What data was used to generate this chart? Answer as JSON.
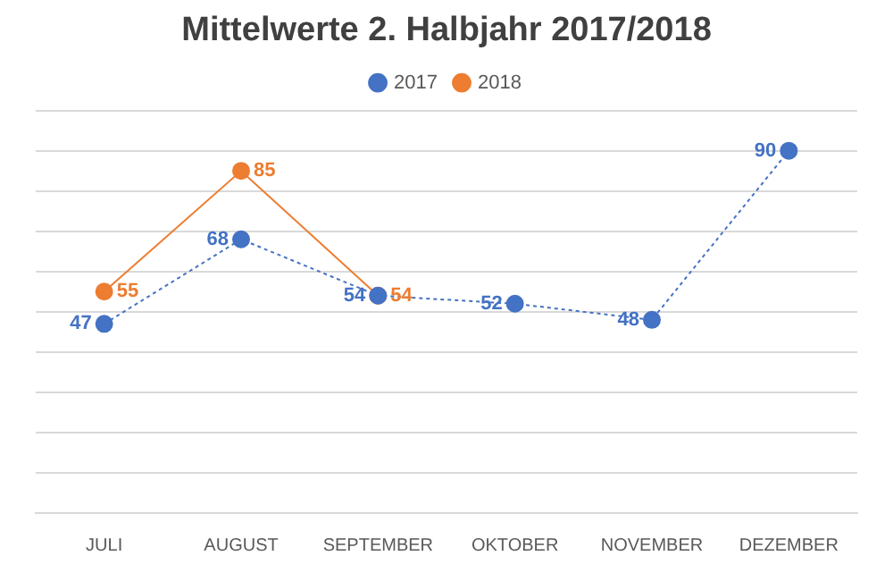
{
  "chart_data": {
    "type": "line",
    "title": "Mittelwerte 2. Halbjahr 2017/2018",
    "categories": [
      "JULI",
      "AUGUST",
      "SEPTEMBER",
      "OKTOBER",
      "NOVEMBER",
      "DEZEMBER"
    ],
    "series": [
      {
        "name": "2017",
        "color": "#4472c4",
        "values": [
          47,
          68,
          54,
          52,
          48,
          90
        ],
        "line_style": "dotted"
      },
      {
        "name": "2018",
        "color": "#ed7d31",
        "values": [
          55,
          85,
          54,
          null,
          null,
          null
        ],
        "line_style": "solid"
      }
    ],
    "ylim": [
      0,
      100
    ],
    "yticks": [
      {
        "value": 0,
        "label": null
      },
      {
        "value": 10,
        "label": null
      },
      {
        "value": 20,
        "label": null
      },
      {
        "value": 30,
        "label": null
      },
      {
        "value": 40,
        "label": null
      },
      {
        "value": 50,
        "label": null
      },
      {
        "value": 60,
        "label": null
      },
      {
        "value": 70,
        "label": null
      },
      {
        "value": 80,
        "label": null
      },
      {
        "value": 90,
        "label": null
      },
      {
        "value": 100,
        "label": null
      }
    ],
    "grid": "y",
    "legend": "top",
    "tick_labels": "x",
    "marker": "circle",
    "data_labels": true
  }
}
